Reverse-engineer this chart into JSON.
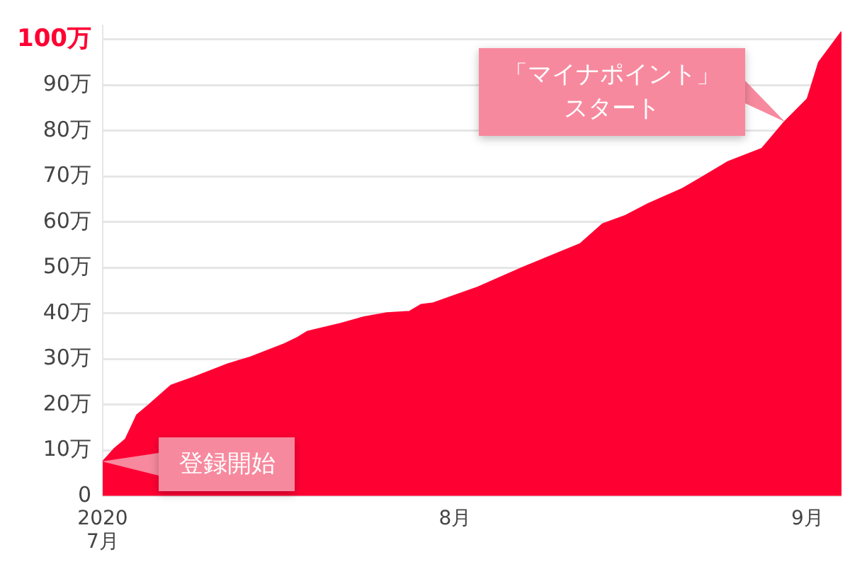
{
  "chart_data": {
    "type": "area",
    "x": [
      "2020-07-01",
      "2020-07-02",
      "2020-07-03",
      "2020-07-04",
      "2020-07-05",
      "2020-07-07",
      "2020-07-09",
      "2020-07-12",
      "2020-07-14",
      "2020-07-17",
      "2020-07-18",
      "2020-07-19",
      "2020-07-22",
      "2020-07-24",
      "2020-07-26",
      "2020-07-28",
      "2020-07-29",
      "2020-07-30",
      "2020-08-03",
      "2020-08-07",
      "2020-08-12",
      "2020-08-14",
      "2020-08-16",
      "2020-08-18",
      "2020-08-21",
      "2020-08-23",
      "2020-08-25",
      "2020-08-28",
      "2020-08-30",
      "2020-09-01",
      "2020-09-02",
      "2020-09-04"
    ],
    "series": [
      {
        "color": "#ff0033",
        "values": [
          7.5,
          10.3,
          12.4,
          17.7,
          19.8,
          24.2,
          26,
          28.9,
          30.4,
          33.3,
          34.5,
          36,
          37.8,
          39.2,
          40.1,
          40.4,
          41.9,
          42.2,
          45.7,
          50.1,
          55.2,
          59.6,
          61.4,
          64,
          67.3,
          70.2,
          73.2,
          76.1,
          82,
          87,
          95,
          101.7
        ]
      }
    ],
    "xlim": [
      "2020-07-01",
      "2020-09-04"
    ],
    "xticks": [
      {
        "value": "2020-07-01",
        "label": "2020\n7月"
      },
      {
        "value": "2020-08-01",
        "label": "8月"
      },
      {
        "value": "2020-09-01",
        "label": "9月"
      }
    ],
    "ylim": [
      0,
      103
    ],
    "yticks": [
      0,
      {
        "value": 10,
        "label": "10万"
      },
      {
        "value": 20,
        "label": "20万"
      },
      {
        "value": 30,
        "label": "30万"
      },
      {
        "value": 40,
        "label": "40万"
      },
      {
        "value": 50,
        "label": "50万"
      },
      {
        "value": 60,
        "label": "60万"
      },
      {
        "value": 70,
        "label": "70万"
      },
      {
        "value": 80,
        "label": "80万"
      },
      {
        "value": 90,
        "label": "90万"
      },
      {
        "value": 100,
        "label": "100万"
      }
    ],
    "grid": "y",
    "legend": false,
    "marker": "none",
    "annotations": [
      {
        "text": "登録開始",
        "x": "2020-07-01",
        "y": 7.5
      },
      {
        "text": "「マイナポイント」スタート",
        "x": "2020-08-30",
        "y": 82
      }
    ]
  }
}
